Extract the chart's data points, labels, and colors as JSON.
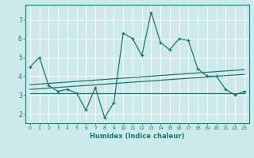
{
  "title": "",
  "xlabel": "Humidex (Indice chaleur)",
  "ylabel": "",
  "background_color": "#cce9eb",
  "grid_color": "#ffffff",
  "line_color": "#1a7a6e",
  "xlim": [
    -0.5,
    23.5
  ],
  "ylim": [
    1.5,
    7.8
  ],
  "yticks": [
    2,
    3,
    4,
    5,
    6,
    7
  ],
  "xticks": [
    0,
    1,
    2,
    3,
    4,
    5,
    6,
    7,
    8,
    9,
    10,
    11,
    12,
    13,
    14,
    15,
    16,
    17,
    18,
    19,
    20,
    21,
    22,
    23
  ],
  "main_x": [
    0,
    1,
    2,
    3,
    4,
    5,
    6,
    7,
    8,
    9,
    10,
    11,
    12,
    13,
    14,
    15,
    16,
    17,
    18,
    19,
    20,
    21,
    22,
    23
  ],
  "main_y": [
    4.5,
    5.0,
    3.5,
    3.2,
    3.3,
    3.1,
    2.2,
    3.4,
    1.8,
    2.6,
    6.3,
    6.0,
    5.1,
    7.4,
    5.8,
    5.4,
    6.0,
    5.9,
    4.4,
    4.0,
    4.0,
    3.3,
    3.0,
    3.2
  ],
  "trend1_x": [
    0,
    23
  ],
  "trend1_y": [
    3.1,
    3.1
  ],
  "trend2_x": [
    0,
    23
  ],
  "trend2_y": [
    3.3,
    4.1
  ],
  "trend3_x": [
    0,
    23
  ],
  "trend3_y": [
    3.55,
    4.35
  ]
}
